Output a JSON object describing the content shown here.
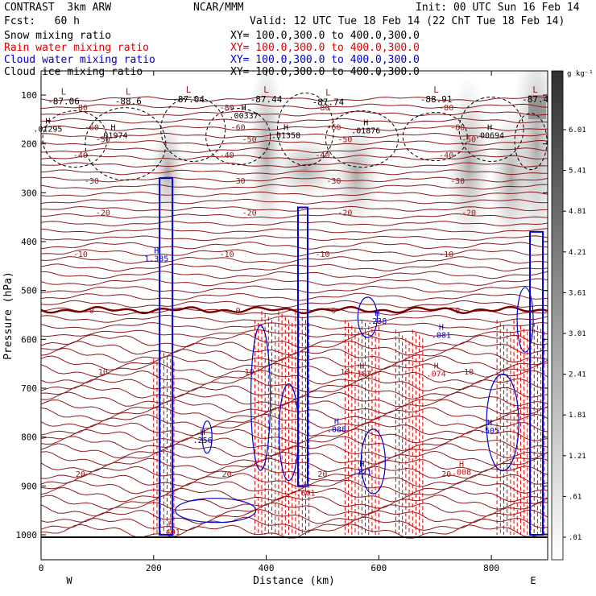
{
  "header": {
    "model": "CONTRAST  3km ARW",
    "org": "NCAR/MMM",
    "init": "Init: 00 UTC Sun 16 Feb 14",
    "fcst": "Fcst:   60 h",
    "valid": "Valid: 12 UTC Tue 18 Feb 14 (22 ChT Tue 18 Feb 14)",
    "legend": [
      {
        "label": "Snow mixing ratio",
        "xy": "XY= 100.0,300.0 to 400.0,300.0",
        "color": "#000000"
      },
      {
        "label": "Rain water mixing ratio",
        "xy": "XY= 100.0,300.0 to 400.0,300.0",
        "color": "#e00000"
      },
      {
        "label": "Cloud water mixing ratio",
        "xy": "XY= 100.0,300.0 to 400.0,300.0",
        "color": "#0000d0"
      },
      {
        "label": "Cloud ice mixing ratio",
        "xy": "XY= 100.0,300.0 to 400.0,300.0",
        "color": "#000000"
      }
    ]
  },
  "chart_data": {
    "type": "contour cross-section",
    "xlabel": "Distance (km)",
    "ylabel": "Pressure (hPa)",
    "xlim": [
      0,
      900
    ],
    "ylim": [
      1040,
      50
    ],
    "x_ticks": [
      "0",
      "200",
      "400",
      "600",
      "800"
    ],
    "x_tick_values": [
      0,
      200,
      400,
      600,
      800
    ],
    "y_ticks": [
      "100",
      "200",
      "300",
      "400",
      "500",
      "600",
      "700",
      "800",
      "900",
      "1000"
    ],
    "y_tick_values": [
      100,
      200,
      300,
      400,
      500,
      600,
      700,
      800,
      900,
      1000
    ],
    "end_labels": {
      "left": "W",
      "right": "E"
    },
    "colorbar": {
      "unit": "g kg⁻¹",
      "labels": [
        "6.01",
        "5.41",
        "4.81",
        "4.21",
        "3.61",
        "3.01",
        "2.41",
        "1.81",
        "1.21",
        ".61",
        ".01"
      ]
    },
    "temperature_contours_C": [
      {
        "label": "-80",
        "pressure": 125
      },
      {
        "label": "-60",
        "pressure": 165
      },
      {
        "label": "-50",
        "pressure": 190
      },
      {
        "label": "-40",
        "pressure": 222
      },
      {
        "label": "-30",
        "pressure": 275
      },
      {
        "label": "-20",
        "pressure": 340
      },
      {
        "label": "-10",
        "pressure": 425
      },
      {
        "label": "0",
        "pressure": 540
      },
      {
        "label": "10",
        "pressure": 665
      },
      {
        "label": "20",
        "pressure": 875
      }
    ],
    "low_labels": [
      {
        "letter": "L",
        "value": "-87.06",
        "x": 40,
        "p": 112
      },
      {
        "letter": "L",
        "value": "-88.6",
        "x": 155,
        "p": 112
      },
      {
        "letter": "L",
        "value": "-87.04",
        "x": 262,
        "p": 108
      },
      {
        "letter": "L",
        "value": "-87.44",
        "x": 400,
        "p": 108
      },
      {
        "letter": "L",
        "value": "-87.74",
        "x": 510,
        "p": 114
      },
      {
        "letter": "L",
        "value": "-88.91",
        "x": 702,
        "p": 108
      },
      {
        "letter": "L",
        "value": "-87.4",
        "x": 878,
        "p": 108
      }
    ],
    "maxima_labels": [
      {
        "text": ".01295",
        "x": 12,
        "p": 175,
        "color": "#000000"
      },
      {
        "text": ".01974",
        "x": 128,
        "p": 188,
        "color": "#000000"
      },
      {
        "text": ".00337",
        "x": 360,
        "p": 148,
        "color": "#000000"
      },
      {
        "text": ".01358",
        "x": 435,
        "p": 188,
        "color": "#000000"
      },
      {
        "text": ".01876",
        "x": 577,
        "p": 178,
        "color": "#000000"
      },
      {
        "text": ".00694",
        "x": 797,
        "p": 188,
        "color": "#000000"
      },
      {
        "text": "1.385",
        "x": 205,
        "p": 440,
        "color": "#0000d0"
      },
      {
        "text": ".238",
        "x": 597,
        "p": 568,
        "color": "#0000d0"
      },
      {
        "text": ".081",
        "x": 711,
        "p": 597,
        "color": "#0000d0"
      },
      {
        "text": ".088",
        "x": 525,
        "p": 790,
        "color": "#0000d0"
      },
      {
        "text": ".256",
        "x": 287,
        "p": 812,
        "color": "#0000d0"
      },
      {
        "text": ".121",
        "x": 570,
        "p": 877,
        "color": "#0000d0"
      },
      {
        "text": ".505",
        "x": 797,
        "p": 792,
        "color": "#0000d0"
      },
      {
        "text": ".187",
        "x": 570,
        "p": 676,
        "color": "#e00000"
      },
      {
        "text": ".074",
        "x": 702,
        "p": 676,
        "color": "#e00000"
      },
      {
        "text": ".008",
        "x": 747,
        "p": 877,
        "color": "#e00000"
      },
      {
        "text": ".401",
        "x": 230,
        "p": 1000,
        "color": "#e00000"
      },
      {
        "text": ".601",
        "x": 470,
        "p": 920,
        "color": "#e00000"
      }
    ]
  }
}
